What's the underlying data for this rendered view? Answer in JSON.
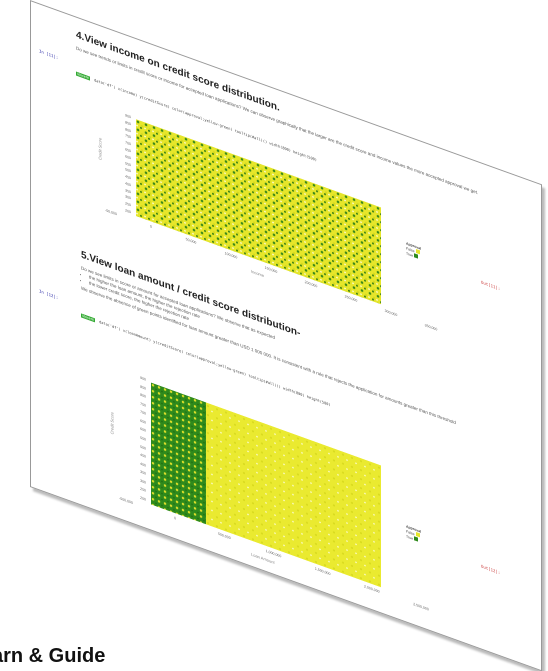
{
  "section1": {
    "title": "4.View income on credit score distribution.",
    "text": "Do we see trends or limits in credit score or income for accepted loan applications? We can observe graphically that the larger are the credit score and income values the more accepted approval we get.",
    "prompt": "In [11]:",
    "badge": "Vincent",
    "code": "data('df') x(income) y(creditScore) color(approval;yellow-green) tooltip(#all)() width(800) height(500)",
    "y_label": "Credit Score",
    "yticks": [
      "900",
      "850",
      "800",
      "750",
      "700",
      "650",
      "600",
      "550",
      "500",
      "450",
      "400",
      "350",
      "300",
      "250",
      "200"
    ],
    "xticks": [
      "-50,000",
      "0",
      "50,000",
      "100,000",
      "150,000",
      "200,000",
      "250,000",
      "300,000",
      "350,000"
    ],
    "x_label": "Income",
    "legend_title": "Approval",
    "legend": [
      "False",
      "True"
    ],
    "out": "Out[11]:"
  },
  "section2": {
    "title": "5.View loan amount / credit score distribution-",
    "text": "Do we see limits in score or amount for accepted loan applications? We observe that as expected",
    "bullets": [
      "the higher the loan amount, the higher the rejection rate",
      "the lower credit score, the higher the rejection rate"
    ],
    "text2": "We observe the absence of green points identified for loan amount greater than USD 1 000 000. It is consistent with a rule that rejects the application for amounts greater than this threshold",
    "prompt": "In [12]:",
    "badge": "Vincent",
    "code": "data('df') x(loanAmount) y(creditScore) color(approval;yellow-green) tooltip(#all)() width(800) height(500)",
    "y_label": "Credit Score",
    "yticks": [
      "900",
      "850",
      "800",
      "750",
      "700",
      "650",
      "600",
      "550",
      "500",
      "450",
      "400",
      "350",
      "300",
      "250",
      "200"
    ],
    "xticks": [
      "-500,000",
      "0",
      "500,000",
      "1,000,000",
      "1,500,000",
      "2,000,000",
      "2,500,000"
    ],
    "x_label": "Loan Amount",
    "legend_title": "Approval",
    "legend": [
      "False",
      "True"
    ],
    "out": "Out[12]:"
  },
  "footer": "arn & Guide"
}
